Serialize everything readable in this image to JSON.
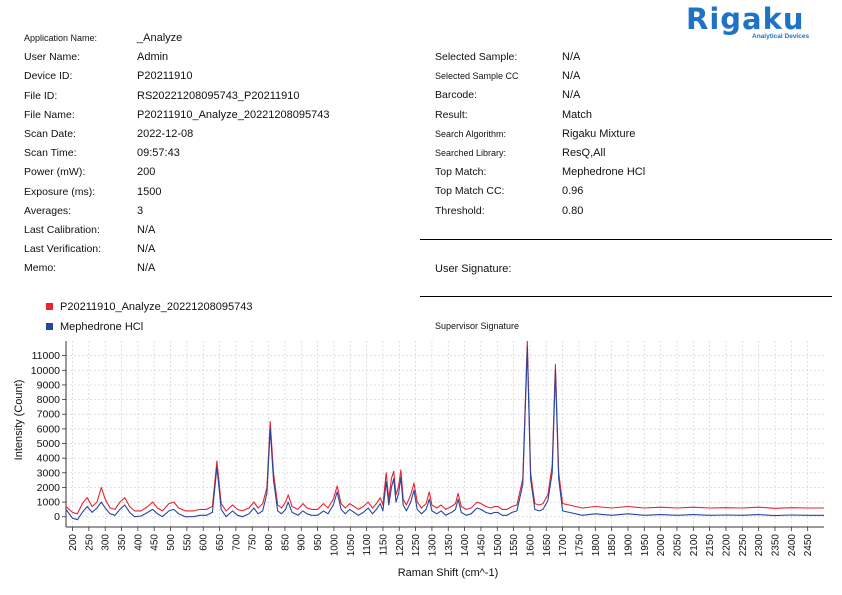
{
  "logo": {
    "brand": "Rigaku",
    "tagline": "Analytical Devices"
  },
  "info_left": [
    {
      "label": "Application Name:",
      "value": "_Analyze",
      "small": true
    },
    {
      "label": "User Name:",
      "value": "Admin"
    },
    {
      "label": "Device ID:",
      "value": "P20211910"
    },
    {
      "label": "File ID:",
      "value": "RS20221208095743_P20211910"
    },
    {
      "label": "File Name:",
      "value": "P20211910_Analyze_20221208095743"
    },
    {
      "label": "Scan Date:",
      "value": "2022-12-08"
    },
    {
      "label": "Scan Time:",
      "value": "09:57:43"
    },
    {
      "label": "Power (mW):",
      "value": "200"
    },
    {
      "label": "Exposure (ms):",
      "value": "1500"
    },
    {
      "label": "Averages:",
      "value": "3"
    },
    {
      "label": "Last Calibration:",
      "value": "N/A"
    },
    {
      "label": "Last Verification:",
      "value": "N/A"
    },
    {
      "label": "Memo:",
      "value": "N/A"
    }
  ],
  "info_right": [
    {
      "label": "Selected Sample:",
      "value": "N/A"
    },
    {
      "label": "Selected Sample CC",
      "value": "N/A",
      "small": true
    },
    {
      "label": "Barcode:",
      "value": "N/A"
    },
    {
      "label": "Result:",
      "value": "Match"
    },
    {
      "label": "Search Algorithm:",
      "value": "Rigaku Mixture",
      "small": true
    },
    {
      "label": "Searched Library:",
      "value": "ResQ,All",
      "small": true
    },
    {
      "label": "Top Match:",
      "value": "Mephedrone HCl"
    },
    {
      "label": "Top Match CC:",
      "value": "0.96"
    },
    {
      "label": "Threshold:",
      "value": "0.80"
    }
  ],
  "signatures": {
    "user_label": "User Signature:",
    "supervisor_label": "Supervisor Signature"
  },
  "colors": {
    "sample": "#e8242f",
    "reference": "#2547a0",
    "brand": "#1f73c6"
  },
  "chart_data": {
    "type": "line",
    "xlabel": "Raman Shift (cm^-1)",
    "ylabel": "Intensity (Count)",
    "xlim": [
      180,
      2500
    ],
    "ylim": [
      -700,
      12000
    ],
    "x_ticks": [
      200,
      250,
      300,
      350,
      400,
      450,
      500,
      550,
      600,
      650,
      700,
      750,
      800,
      850,
      900,
      950,
      1000,
      1050,
      1100,
      1150,
      1200,
      1250,
      1300,
      1350,
      1400,
      1450,
      1500,
      1550,
      1600,
      1650,
      1700,
      1750,
      1800,
      1850,
      1900,
      1950,
      2000,
      2050,
      2100,
      2150,
      2200,
      2250,
      2300,
      2350,
      2400,
      2450
    ],
    "y_ticks": [
      0,
      1000,
      2000,
      3000,
      4000,
      5000,
      6000,
      7000,
      8000,
      9000,
      10000,
      11000
    ],
    "grid": true,
    "legend_position": "top-left",
    "series": [
      {
        "name": "P20211910_Analyze_20221208095743",
        "color": "#e8242f",
        "points": [
          [
            180,
            700
          ],
          [
            200,
            300
          ],
          [
            215,
            200
          ],
          [
            230,
            900
          ],
          [
            245,
            1300
          ],
          [
            260,
            700
          ],
          [
            275,
            1000
          ],
          [
            288,
            2000
          ],
          [
            300,
            1200
          ],
          [
            315,
            600
          ],
          [
            330,
            500
          ],
          [
            345,
            1000
          ],
          [
            360,
            1300
          ],
          [
            375,
            700
          ],
          [
            390,
            400
          ],
          [
            410,
            400
          ],
          [
            430,
            700
          ],
          [
            445,
            1000
          ],
          [
            460,
            600
          ],
          [
            475,
            400
          ],
          [
            495,
            900
          ],
          [
            510,
            1000
          ],
          [
            525,
            600
          ],
          [
            545,
            400
          ],
          [
            570,
            400
          ],
          [
            590,
            500
          ],
          [
            610,
            500
          ],
          [
            628,
            700
          ],
          [
            642,
            3800
          ],
          [
            655,
            900
          ],
          [
            670,
            400
          ],
          [
            690,
            800
          ],
          [
            705,
            500
          ],
          [
            720,
            400
          ],
          [
            740,
            600
          ],
          [
            755,
            1000
          ],
          [
            768,
            600
          ],
          [
            782,
            900
          ],
          [
            795,
            2000
          ],
          [
            805,
            6500
          ],
          [
            815,
            3000
          ],
          [
            828,
            800
          ],
          [
            840,
            600
          ],
          [
            852,
            1000
          ],
          [
            860,
            1500
          ],
          [
            872,
            700
          ],
          [
            890,
            500
          ],
          [
            905,
            900
          ],
          [
            918,
            600
          ],
          [
            932,
            500
          ],
          [
            950,
            500
          ],
          [
            968,
            900
          ],
          [
            982,
            600
          ],
          [
            998,
            1200
          ],
          [
            1010,
            2100
          ],
          [
            1022,
            900
          ],
          [
            1035,
            600
          ],
          [
            1048,
            900
          ],
          [
            1062,
            700
          ],
          [
            1075,
            500
          ],
          [
            1090,
            700
          ],
          [
            1105,
            1000
          ],
          [
            1118,
            600
          ],
          [
            1130,
            900
          ],
          [
            1142,
            1300
          ],
          [
            1150,
            800
          ],
          [
            1160,
            3000
          ],
          [
            1168,
            1200
          ],
          [
            1176,
            2600
          ],
          [
            1183,
            3100
          ],
          [
            1190,
            1500
          ],
          [
            1198,
            2100
          ],
          [
            1205,
            3200
          ],
          [
            1212,
            1200
          ],
          [
            1222,
            800
          ],
          [
            1235,
            1500
          ],
          [
            1245,
            2300
          ],
          [
            1255,
            1000
          ],
          [
            1268,
            600
          ],
          [
            1282,
            900
          ],
          [
            1292,
            1700
          ],
          [
            1300,
            800
          ],
          [
            1315,
            600
          ],
          [
            1328,
            800
          ],
          [
            1342,
            500
          ],
          [
            1360,
            700
          ],
          [
            1372,
            900
          ],
          [
            1380,
            1600
          ],
          [
            1390,
            700
          ],
          [
            1405,
            500
          ],
          [
            1420,
            600
          ],
          [
            1438,
            1000
          ],
          [
            1450,
            900
          ],
          [
            1465,
            700
          ],
          [
            1480,
            600
          ],
          [
            1492,
            700
          ],
          [
            1502,
            700
          ],
          [
            1515,
            500
          ],
          [
            1530,
            500
          ],
          [
            1545,
            700
          ],
          [
            1560,
            800
          ],
          [
            1578,
            2600
          ],
          [
            1592,
            12000
          ],
          [
            1602,
            3000
          ],
          [
            1615,
            900
          ],
          [
            1628,
            800
          ],
          [
            1640,
            900
          ],
          [
            1655,
            1500
          ],
          [
            1668,
            3500
          ],
          [
            1678,
            10400
          ],
          [
            1688,
            3000
          ],
          [
            1700,
            900
          ],
          [
            1720,
            800
          ],
          [
            1760,
            600
          ],
          [
            1800,
            700
          ],
          [
            1850,
            600
          ],
          [
            1900,
            700
          ],
          [
            1950,
            600
          ],
          [
            2000,
            650
          ],
          [
            2050,
            600
          ],
          [
            2100,
            650
          ],
          [
            2150,
            600
          ],
          [
            2200,
            620
          ],
          [
            2250,
            600
          ],
          [
            2300,
            650
          ],
          [
            2350,
            580
          ],
          [
            2400,
            620
          ],
          [
            2450,
            600
          ],
          [
            2500,
            600
          ]
        ]
      },
      {
        "name": "Mephedrone HCl",
        "color": "#2547a0",
        "points": [
          [
            180,
            500
          ],
          [
            200,
            -100
          ],
          [
            215,
            -200
          ],
          [
            230,
            300
          ],
          [
            245,
            700
          ],
          [
            260,
            300
          ],
          [
            275,
            600
          ],
          [
            288,
            1000
          ],
          [
            300,
            600
          ],
          [
            315,
            200
          ],
          [
            330,
            100
          ],
          [
            345,
            500
          ],
          [
            360,
            800
          ],
          [
            375,
            300
          ],
          [
            390,
            0
          ],
          [
            410,
            50
          ],
          [
            430,
            300
          ],
          [
            445,
            500
          ],
          [
            460,
            200
          ],
          [
            475,
            0
          ],
          [
            495,
            400
          ],
          [
            510,
            500
          ],
          [
            525,
            200
          ],
          [
            545,
            0
          ],
          [
            570,
            0
          ],
          [
            590,
            100
          ],
          [
            610,
            100
          ],
          [
            628,
            300
          ],
          [
            642,
            3400
          ],
          [
            655,
            500
          ],
          [
            670,
            0
          ],
          [
            690,
            400
          ],
          [
            705,
            100
          ],
          [
            720,
            0
          ],
          [
            740,
            200
          ],
          [
            755,
            600
          ],
          [
            768,
            200
          ],
          [
            782,
            400
          ],
          [
            795,
            1600
          ],
          [
            805,
            6000
          ],
          [
            815,
            2500
          ],
          [
            828,
            400
          ],
          [
            840,
            200
          ],
          [
            852,
            500
          ],
          [
            860,
            1000
          ],
          [
            872,
            300
          ],
          [
            890,
            100
          ],
          [
            905,
            400
          ],
          [
            918,
            200
          ],
          [
            932,
            100
          ],
          [
            950,
            100
          ],
          [
            968,
            400
          ],
          [
            982,
            200
          ],
          [
            998,
            800
          ],
          [
            1010,
            1700
          ],
          [
            1022,
            500
          ],
          [
            1035,
            200
          ],
          [
            1048,
            500
          ],
          [
            1062,
            300
          ],
          [
            1075,
            100
          ],
          [
            1090,
            300
          ],
          [
            1105,
            600
          ],
          [
            1118,
            200
          ],
          [
            1130,
            500
          ],
          [
            1142,
            900
          ],
          [
            1150,
            400
          ],
          [
            1160,
            2400
          ],
          [
            1168,
            800
          ],
          [
            1176,
            2000
          ],
          [
            1183,
            2600
          ],
          [
            1190,
            1000
          ],
          [
            1198,
            1600
          ],
          [
            1205,
            2700
          ],
          [
            1212,
            800
          ],
          [
            1222,
            400
          ],
          [
            1235,
            1000
          ],
          [
            1245,
            1800
          ],
          [
            1255,
            500
          ],
          [
            1268,
            200
          ],
          [
            1282,
            500
          ],
          [
            1292,
            1200
          ],
          [
            1300,
            400
          ],
          [
            1315,
            200
          ],
          [
            1328,
            400
          ],
          [
            1342,
            100
          ],
          [
            1360,
            300
          ],
          [
            1372,
            500
          ],
          [
            1380,
            1200
          ],
          [
            1390,
            300
          ],
          [
            1405,
            100
          ],
          [
            1420,
            200
          ],
          [
            1438,
            600
          ],
          [
            1450,
            500
          ],
          [
            1465,
            300
          ],
          [
            1480,
            200
          ],
          [
            1492,
            300
          ],
          [
            1502,
            300
          ],
          [
            1515,
            100
          ],
          [
            1530,
            100
          ],
          [
            1545,
            300
          ],
          [
            1560,
            400
          ],
          [
            1578,
            2200
          ],
          [
            1592,
            11600
          ],
          [
            1602,
            2600
          ],
          [
            1615,
            500
          ],
          [
            1628,
            400
          ],
          [
            1640,
            500
          ],
          [
            1655,
            1100
          ],
          [
            1668,
            3000
          ],
          [
            1678,
            10000
          ],
          [
            1688,
            2600
          ],
          [
            1700,
            400
          ],
          [
            1720,
            300
          ],
          [
            1760,
            100
          ],
          [
            1800,
            200
          ],
          [
            1850,
            100
          ],
          [
            1900,
            200
          ],
          [
            1950,
            100
          ],
          [
            2000,
            150
          ],
          [
            2050,
            100
          ],
          [
            2100,
            150
          ],
          [
            2150,
            100
          ],
          [
            2200,
            120
          ],
          [
            2250,
            100
          ],
          [
            2300,
            150
          ],
          [
            2350,
            80
          ],
          [
            2400,
            120
          ],
          [
            2450,
            100
          ],
          [
            2500,
            100
          ]
        ]
      }
    ]
  }
}
